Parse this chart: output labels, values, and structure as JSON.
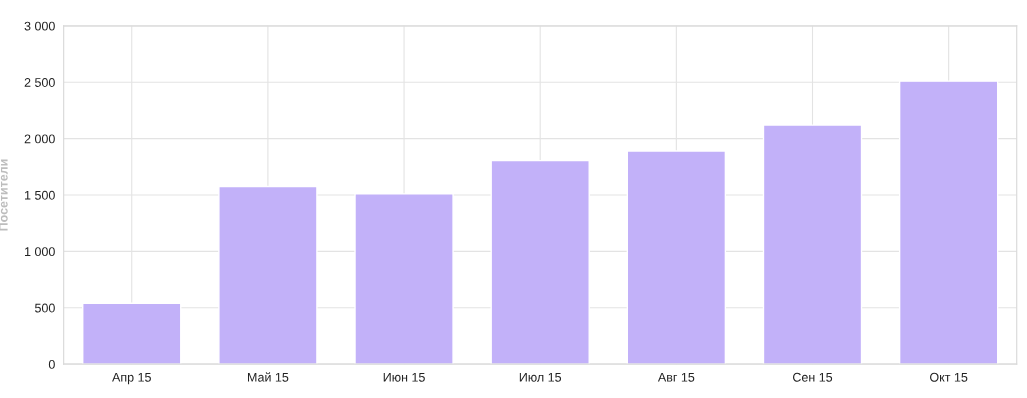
{
  "chart_data": {
    "type": "bar",
    "ylabel": "Посетители",
    "categories": [
      "Апр 15",
      "Май 15",
      "Июн 15",
      "Июл 15",
      "Авг 15",
      "Сен 15",
      "Окт 15"
    ],
    "values": [
      540,
      1575,
      1510,
      1805,
      1890,
      2120,
      2510
    ],
    "color": "#c2b1f9",
    "ylim": [
      0,
      3000
    ],
    "yticks": [
      0,
      500,
      {
        "value": 1000,
        "label": "1 000"
      },
      {
        "value": 1500,
        "label": "1 500"
      },
      {
        "value": 2000,
        "label": "2 000"
      },
      {
        "value": 2500,
        "label": "2 500"
      },
      {
        "value": 3000,
        "label": "3 000"
      }
    ],
    "grid": true
  }
}
